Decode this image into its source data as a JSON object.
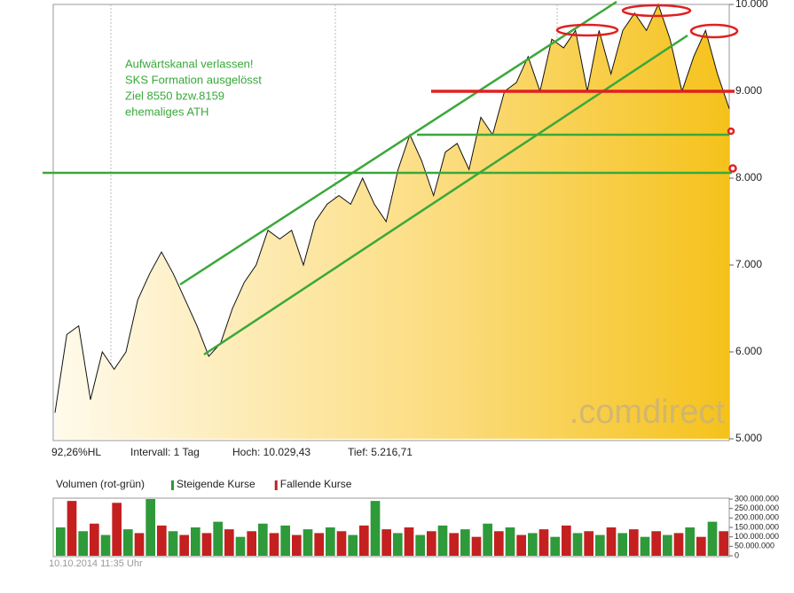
{
  "chart_data": [
    {
      "type": "area",
      "color": "#f5c21b",
      "line_color": "#111111",
      "values": [
        5300,
        6200,
        6300,
        5450,
        6000,
        5800,
        6000,
        6600,
        6900,
        7150,
        6900,
        6600,
        6300,
        5950,
        6100,
        6500,
        6800,
        7000,
        7400,
        7300,
        7400,
        7000,
        7500,
        7700,
        7800,
        7700,
        8000,
        7700,
        7500,
        8100,
        8500,
        8200,
        7800,
        8300,
        8400,
        8100,
        8700,
        8500,
        9000,
        9100,
        9400,
        9000,
        9600,
        9500,
        9700,
        9000,
        9700,
        9200,
        9700,
        9900,
        9700,
        10000,
        9600,
        9000,
        9400,
        9700,
        9200,
        8800
      ],
      "ylim": [
        5000,
        10000
      ],
      "yticks": [
        {
          "value": 5000,
          "label": "5.000"
        },
        {
          "value": 6000,
          "label": "6.000"
        },
        {
          "value": 7000,
          "label": "7.000"
        },
        {
          "value": 8000,
          "label": "8.000"
        },
        {
          "value": 9000,
          "label": "9.000"
        },
        {
          "value": 10000,
          "label": "10.000"
        }
      ],
      "annotations": [
        "Aufwärtskanal verlassen!",
        "SKS Formation ausgelösst",
        "Ziel 8550 bzw.8159",
        "ehemaliges ATH"
      ],
      "stats": [
        "92,26%HL",
        "Intervall: 1 Tag",
        "Hoch:  10.029,43",
        "Tief:  5.216,71"
      ],
      "watermark": ".comdirect"
    },
    {
      "type": "bar",
      "title": "Volumen (rot-grün)",
      "series": [
        {
          "name": "Steigende Kurse",
          "color": "#2e9a3a",
          "values": [
            150000000,
            null,
            130000000,
            null,
            110000000,
            null,
            140000000,
            null,
            300000000,
            null,
            130000000,
            null,
            150000000,
            null,
            180000000,
            null,
            100000000,
            null,
            170000000,
            null,
            160000000,
            null,
            140000000,
            null,
            150000000,
            null,
            110000000,
            null,
            290000000,
            null,
            120000000,
            null,
            110000000,
            null,
            160000000,
            null,
            140000000,
            null,
            170000000,
            null,
            150000000,
            null,
            120000000,
            null,
            100000000,
            null,
            120000000,
            null,
            110000000,
            null,
            120000000,
            null,
            100000000,
            null,
            110000000,
            null,
            150000000,
            null,
            180000000,
            null
          ]
        },
        {
          "name": "Fallende Kurse",
          "color": "#c42020",
          "values": [
            null,
            290000000,
            null,
            170000000,
            null,
            280000000,
            null,
            120000000,
            null,
            160000000,
            null,
            110000000,
            null,
            120000000,
            null,
            140000000,
            null,
            130000000,
            null,
            120000000,
            null,
            110000000,
            null,
            120000000,
            null,
            130000000,
            null,
            160000000,
            null,
            140000000,
            null,
            150000000,
            null,
            130000000,
            null,
            120000000,
            null,
            100000000,
            null,
            130000000,
            null,
            110000000,
            null,
            140000000,
            null,
            160000000,
            null,
            130000000,
            null,
            150000000,
            null,
            140000000,
            null,
            130000000,
            null,
            120000000,
            null,
            100000000,
            null,
            130000000
          ]
        }
      ],
      "ylim": [
        0,
        300000000
      ],
      "yticks": [
        0,
        {
          "value": 50000000,
          "label": "50.000.000"
        },
        {
          "value": 100000000,
          "label": "100.000.000"
        },
        {
          "value": 150000000,
          "label": "150.000.000"
        },
        {
          "value": 200000000,
          "label": "200.000.000"
        },
        {
          "value": 250000000,
          "label": "250.000.000"
        },
        {
          "value": 300000000,
          "label": "300.000.000"
        }
      ]
    }
  ],
  "footer": {
    "timestamp": "10.10.2014 11:35 Uhr"
  }
}
